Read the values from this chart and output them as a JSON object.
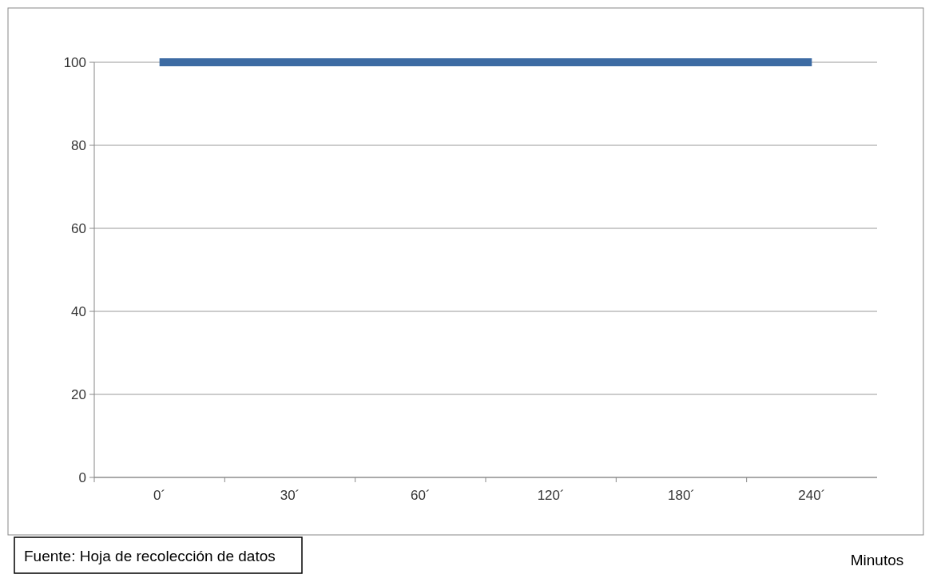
{
  "chart_data": {
    "type": "line",
    "categories": [
      "0´",
      "30´",
      "60´",
      "120´",
      "180´",
      "240´"
    ],
    "series": [
      {
        "color": "#3d6ba3",
        "values": [
          100,
          100,
          100,
          100,
          100,
          100
        ]
      }
    ],
    "ylim": [
      0,
      100
    ],
    "yticks": [
      0,
      20,
      40,
      60,
      80,
      100
    ],
    "grid": "y",
    "marker": "none",
    "line_style": "solid",
    "xlabel": "Minutos",
    "annotations": [
      "Fuente: Hoja de recolección de datos"
    ]
  }
}
